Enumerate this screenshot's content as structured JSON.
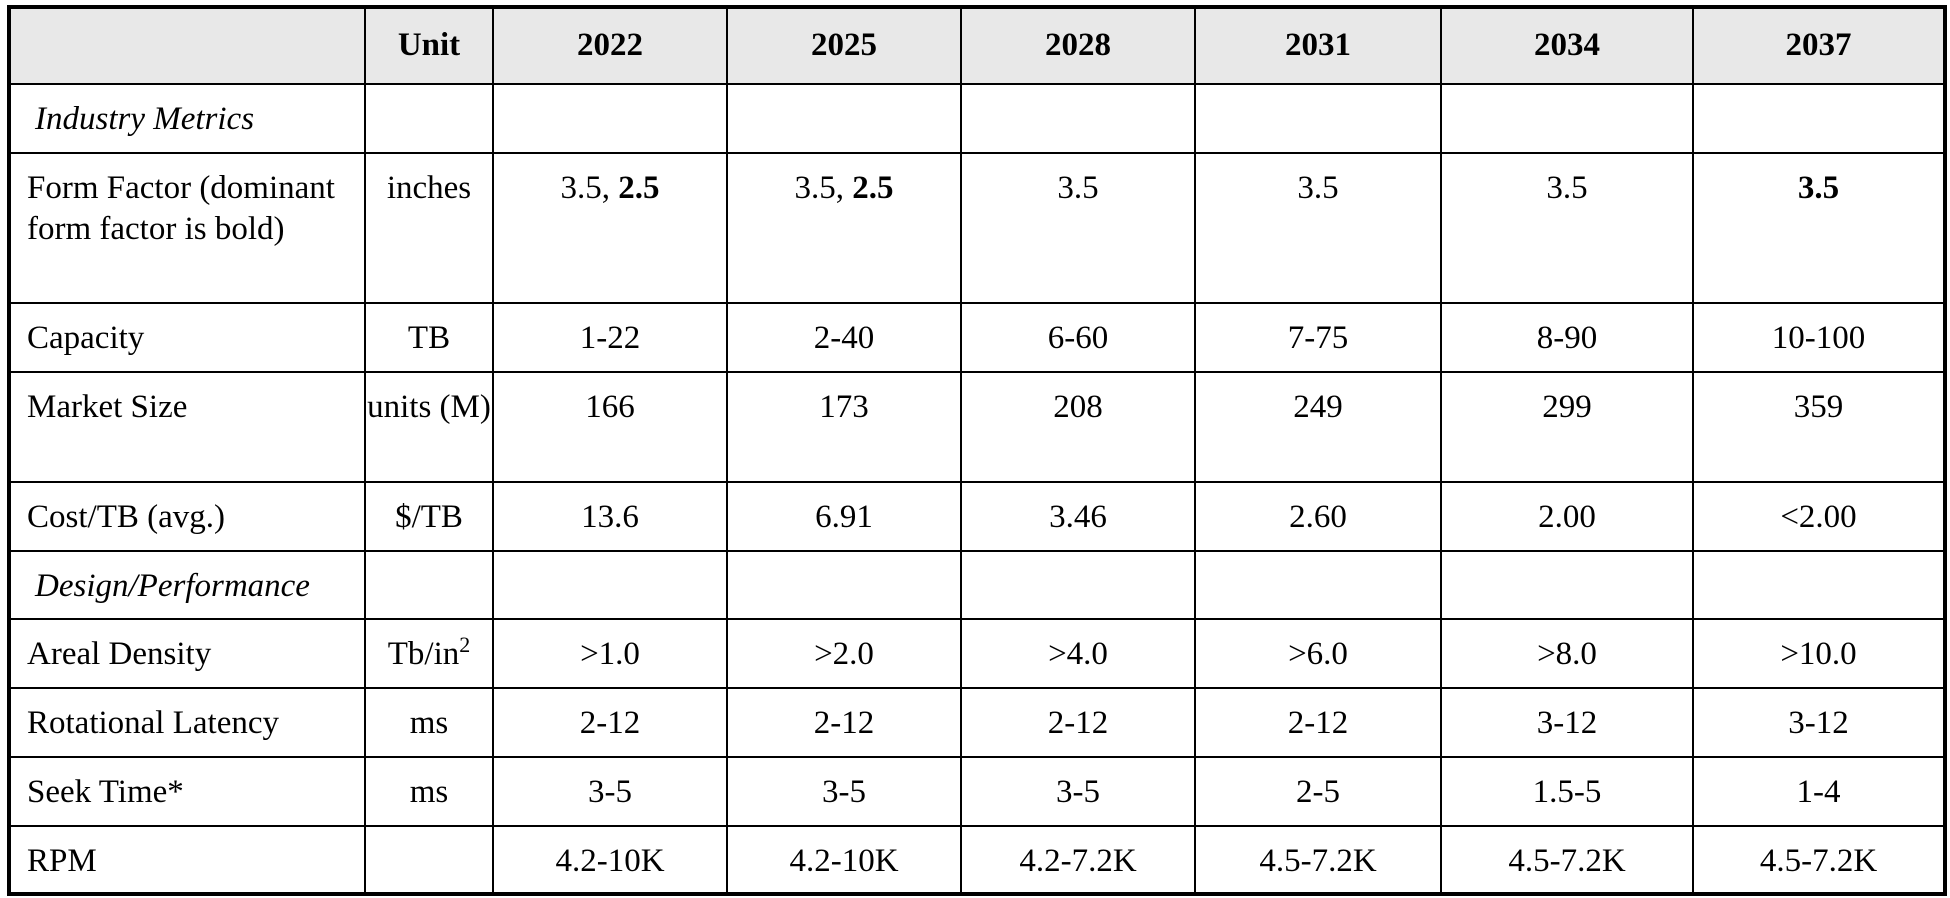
{
  "table": {
    "header": {
      "metric": "",
      "unit": "Unit",
      "years": [
        "2022",
        "2025",
        "2028",
        "2031",
        "2034",
        "2037"
      ]
    },
    "sections": {
      "industry_metrics": "Industry Metrics",
      "design_performance": "Design/Performance"
    },
    "rows": {
      "form_factor": {
        "label": "Form Factor (dominant form factor is bold)",
        "unit": "inches",
        "values": [
          {
            "plain": "3.5, ",
            "bold": "2.5"
          },
          {
            "plain": "3.5, ",
            "bold": "2.5"
          },
          {
            "plain": "3.5",
            "bold": ""
          },
          {
            "plain": "3.5",
            "bold": ""
          },
          {
            "plain": "3.5",
            "bold": ""
          },
          {
            "plain": "",
            "bold": "3.5"
          }
        ]
      },
      "capacity": {
        "label": "Capacity",
        "unit": "TB",
        "values": [
          "1-22",
          "2-40",
          "6-60",
          "7-75",
          "8-90",
          "10-100"
        ]
      },
      "market_size": {
        "label": "Market Size",
        "unit": "units (M)",
        "values": [
          "166",
          "173",
          "208",
          "249",
          "299",
          "359"
        ]
      },
      "cost_per_tb": {
        "label": "Cost/TB (avg.)",
        "unit": "$/TB",
        "values": [
          "13.6",
          "6.91",
          "3.46",
          "2.60",
          "2.00",
          "<2.00"
        ]
      },
      "areal_density": {
        "label": "Areal Density",
        "unit_base": "Tb/in",
        "unit_sup": "2",
        "values": [
          ">1.0",
          ">2.0",
          ">4.0",
          ">6.0",
          ">8.0",
          ">10.0"
        ]
      },
      "rotational_latency": {
        "label": "Rotational Latency",
        "unit": "ms",
        "values": [
          "2-12",
          "2-12",
          "2-12",
          "2-12",
          "3-12",
          "3-12"
        ]
      },
      "seek_time": {
        "label": "Seek Time*",
        "unit": "ms",
        "values": [
          "3-5",
          "3-5",
          "3-5",
          "2-5",
          "1.5-5",
          "1-4"
        ]
      },
      "rpm": {
        "label": "RPM",
        "unit": "",
        "values": [
          "4.2-10K",
          "4.2-10K",
          "4.2-7.2K",
          "4.5-7.2K",
          "4.5-7.2K",
          "4.5-7.2K"
        ]
      }
    }
  }
}
